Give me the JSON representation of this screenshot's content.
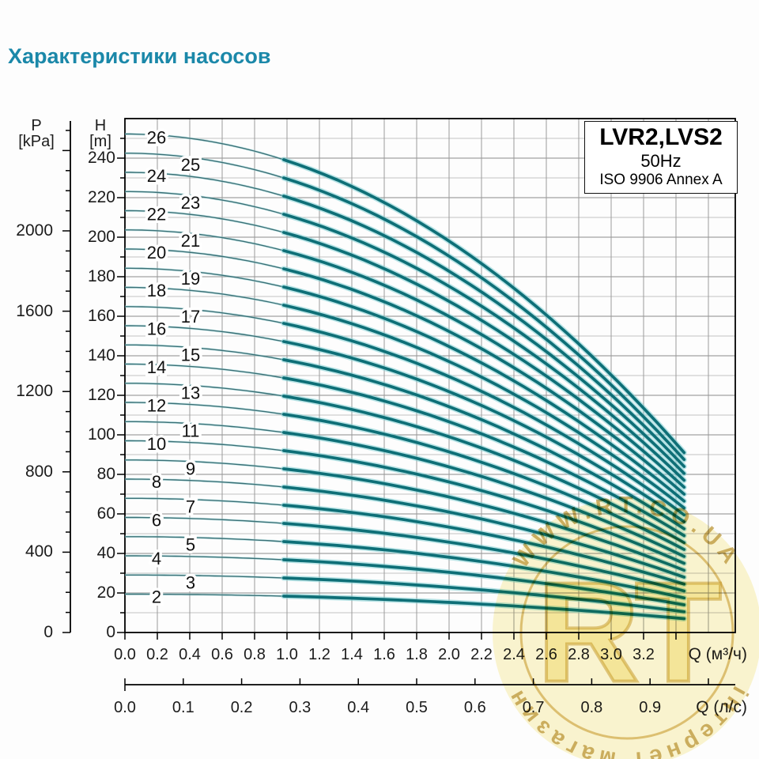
{
  "page": {
    "heading": "Характеристики насосов",
    "heading_color": "#1b88a9"
  },
  "chart_data": {
    "type": "line",
    "title": "Характеристики насосов",
    "info_box": {
      "model": "LVR2,LVS2",
      "frequency": "50Hz",
      "standard": "ISO 9906 Annex A"
    },
    "x_axis_primary": {
      "unit_label": "Q (м³/ч)",
      "tick_step": 0.2,
      "tick_labels": [
        "0.0",
        "0.2",
        "0.4",
        "0.6",
        "0.8",
        "1.0",
        "1.2",
        "1.4",
        "1.6",
        "1.8",
        "2.0",
        "2.2",
        "2.4",
        "2.6",
        "2.8",
        "3.0",
        "3.2"
      ],
      "range": [
        0,
        3.8
      ]
    },
    "x_axis_secondary": {
      "unit_label": "Q (л/с)",
      "tick_step": 0.1,
      "tick_labels": [
        "0.0",
        "0.1",
        "0.2",
        "0.3",
        "0.4",
        "0.5",
        "0.6",
        "0.7",
        "0.8",
        "0.9"
      ]
    },
    "y_axis_head": {
      "name": "H",
      "unit": "[m]",
      "major_step": 20,
      "minor_step": 10,
      "range_m": [
        0,
        260
      ],
      "tick_labels": [
        "0",
        "20",
        "40",
        "60",
        "80",
        "100",
        "120",
        "140",
        "160",
        "180",
        "200",
        "220",
        "240"
      ]
    },
    "y_axis_pressure": {
      "name": "P",
      "unit": "[kPa]",
      "major_step": 400,
      "minor_step": 100,
      "range_kpa": [
        0,
        2550
      ],
      "tick_labels": [
        "0",
        "400",
        "800",
        "1200",
        "1600",
        "2000"
      ]
    },
    "q_max_m3h": 3.45,
    "q_thick_from_m3h": 1.0,
    "curve_color_thick": "#0e6f77",
    "curve_color_thin": "#3a7076",
    "grid_major_color": "#8a8a8a",
    "grid_minor_color": "#c2c2c2",
    "curves": [
      {
        "label": "2",
        "stages": 2,
        "shutoff_head_m": 19.4,
        "head_at_qmax_m": 7.0
      },
      {
        "label": "3",
        "stages": 3,
        "shutoff_head_m": 29.1,
        "head_at_qmax_m": 10.5
      },
      {
        "label": "4",
        "stages": 4,
        "shutoff_head_m": 38.8,
        "head_at_qmax_m": 14.0
      },
      {
        "label": "5",
        "stages": 5,
        "shutoff_head_m": 48.5,
        "head_at_qmax_m": 17.5
      },
      {
        "label": "6",
        "stages": 6,
        "shutoff_head_m": 58.2,
        "head_at_qmax_m": 21.0
      },
      {
        "label": "7",
        "stages": 7,
        "shutoff_head_m": 67.9,
        "head_at_qmax_m": 24.5
      },
      {
        "label": "8",
        "stages": 8,
        "shutoff_head_m": 77.6,
        "head_at_qmax_m": 28.0
      },
      {
        "label": "9",
        "stages": 9,
        "shutoff_head_m": 87.3,
        "head_at_qmax_m": 31.5
      },
      {
        "label": "10",
        "stages": 10,
        "shutoff_head_m": 97.0,
        "head_at_qmax_m": 35.0
      },
      {
        "label": "11",
        "stages": 11,
        "shutoff_head_m": 106.7,
        "head_at_qmax_m": 38.5
      },
      {
        "label": "12",
        "stages": 12,
        "shutoff_head_m": 116.4,
        "head_at_qmax_m": 42.0
      },
      {
        "label": "13",
        "stages": 13,
        "shutoff_head_m": 126.1,
        "head_at_qmax_m": 45.5
      },
      {
        "label": "14",
        "stages": 14,
        "shutoff_head_m": 135.8,
        "head_at_qmax_m": 49.0
      },
      {
        "label": "15",
        "stages": 15,
        "shutoff_head_m": 145.5,
        "head_at_qmax_m": 52.5
      },
      {
        "label": "16",
        "stages": 16,
        "shutoff_head_m": 155.2,
        "head_at_qmax_m": 56.0
      },
      {
        "label": "17",
        "stages": 17,
        "shutoff_head_m": 164.9,
        "head_at_qmax_m": 59.5
      },
      {
        "label": "18",
        "stages": 18,
        "shutoff_head_m": 174.6,
        "head_at_qmax_m": 63.0
      },
      {
        "label": "19",
        "stages": 19,
        "shutoff_head_m": 184.3,
        "head_at_qmax_m": 66.5
      },
      {
        "label": "20",
        "stages": 20,
        "shutoff_head_m": 194.0,
        "head_at_qmax_m": 70.0
      },
      {
        "label": "21",
        "stages": 21,
        "shutoff_head_m": 203.7,
        "head_at_qmax_m": 73.5
      },
      {
        "label": "22",
        "stages": 22,
        "shutoff_head_m": 213.4,
        "head_at_qmax_m": 77.0
      },
      {
        "label": "23",
        "stages": 23,
        "shutoff_head_m": 223.1,
        "head_at_qmax_m": 80.5
      },
      {
        "label": "24",
        "stages": 24,
        "shutoff_head_m": 232.8,
        "head_at_qmax_m": 84.0
      },
      {
        "label": "25",
        "stages": 25,
        "shutoff_head_m": 242.5,
        "head_at_qmax_m": 87.5
      },
      {
        "label": "26",
        "stages": 26,
        "shutoff_head_m": 252.2,
        "head_at_qmax_m": 91.0
      }
    ]
  },
  "watermark": {
    "top_text": "WWW.RT.CO.UA",
    "bottom_text": "інтернет магазин",
    "center_text": "RT",
    "gold_color": "#c09a28"
  }
}
